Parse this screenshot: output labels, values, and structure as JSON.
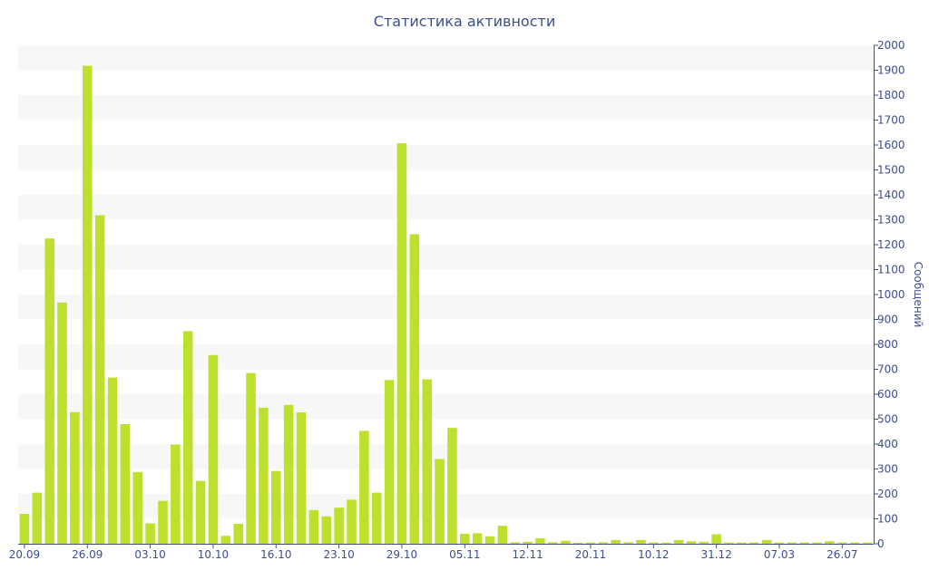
{
  "chart_data": {
    "type": "bar",
    "title": "Статистика активности",
    "ylabel": "Сообщений",
    "xlabel": "",
    "ylim": [
      0,
      2000
    ],
    "y_ticks": [
      0,
      100,
      200,
      300,
      400,
      500,
      600,
      700,
      800,
      900,
      1000,
      1100,
      1200,
      1300,
      1400,
      1500,
      1600,
      1700,
      1800,
      1900,
      2000
    ],
    "y_axis_side": "right",
    "grid": "alternating horizontal bands",
    "x_tick_labels": [
      {
        "index": 0,
        "label": "20.09"
      },
      {
        "index": 5,
        "label": "26.09"
      },
      {
        "index": 10,
        "label": "03.10"
      },
      {
        "index": 15,
        "label": "10.10"
      },
      {
        "index": 20,
        "label": "16.10"
      },
      {
        "index": 25,
        "label": "23.10"
      },
      {
        "index": 30,
        "label": "29.10"
      },
      {
        "index": 35,
        "label": "05.11"
      },
      {
        "index": 40,
        "label": "12.11"
      },
      {
        "index": 45,
        "label": "20.11"
      },
      {
        "index": 50,
        "label": "10.12"
      },
      {
        "index": 55,
        "label": "31.12"
      },
      {
        "index": 60,
        "label": "07.03"
      },
      {
        "index": 65,
        "label": "26.07"
      }
    ],
    "values": [
      120,
      205,
      1225,
      968,
      528,
      1918,
      1318,
      667,
      480,
      288,
      82,
      172,
      398,
      853,
      252,
      757,
      32,
      80,
      685,
      546,
      292,
      557,
      527,
      135,
      110,
      145,
      177,
      453,
      205,
      657,
      1607,
      1242,
      660,
      340,
      465,
      40,
      42,
      30,
      72,
      6,
      8,
      22,
      6,
      12,
      4,
      5,
      6,
      15,
      6,
      15,
      5,
      4,
      15,
      10,
      8,
      38,
      5,
      5,
      5,
      15,
      5,
      5,
      5,
      5,
      10,
      5,
      5,
      5
    ],
    "colors": {
      "bar": "#bde02e",
      "band": "#f7f7f7",
      "axis": "#3d4f8c",
      "text": "#3d4f8c"
    }
  }
}
